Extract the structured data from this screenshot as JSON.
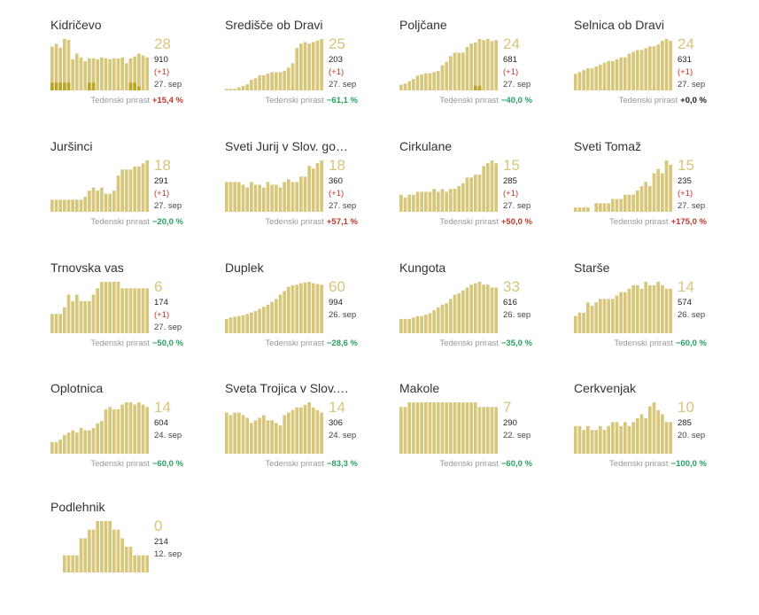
{
  "colors": {
    "bar": "#d8c77a",
    "bar_dark": "#bba323",
    "big_number": "#d8c47a",
    "up": "#c0392b",
    "down": "#27a060"
  },
  "growth_label": "Tedenski prirast",
  "chart_data": [
    {
      "type": "bar",
      "title": "Kidričevo",
      "active": "28",
      "total": "910",
      "delta": "(+1)",
      "date": "27. sep",
      "growth": "+15,4 %",
      "values": [
        45,
        48,
        44,
        53,
        52,
        32,
        38,
        34,
        30,
        33,
        33,
        32,
        34,
        33,
        32,
        33,
        33,
        34,
        28,
        33,
        35,
        38,
        36,
        34
      ],
      "dark": [
        8,
        8,
        8,
        8,
        8,
        0,
        0,
        0,
        0,
        8,
        8,
        0,
        0,
        0,
        0,
        0,
        0,
        0,
        0,
        8,
        8,
        4,
        0,
        0
      ]
    },
    {
      "type": "bar",
      "title": "Središče ob Dravi",
      "active": "25",
      "total": "203",
      "delta": "(+1)",
      "date": "27. sep",
      "growth": "−61,1 %",
      "values": [
        1,
        1,
        1,
        2,
        3,
        4,
        7,
        8,
        10,
        10,
        11,
        12,
        12,
        12,
        13,
        15,
        18,
        28,
        31,
        32,
        31,
        32,
        33,
        34
      ],
      "dark": [
        0,
        0,
        0,
        0,
        0,
        0,
        0,
        0,
        0,
        0,
        0,
        0,
        0,
        0,
        0,
        0,
        0,
        0,
        0,
        0,
        0,
        0,
        0,
        0
      ]
    },
    {
      "type": "bar",
      "title": "Poljčane",
      "active": "24",
      "total": "681",
      "delta": "(+1)",
      "date": "27. sep",
      "growth": "−40,0 %",
      "values": [
        5,
        6,
        8,
        10,
        13,
        14,
        15,
        15,
        16,
        17,
        22,
        25,
        30,
        33,
        33,
        33,
        38,
        41,
        42,
        45,
        44,
        45,
        43,
        44
      ],
      "dark": [
        0,
        0,
        0,
        0,
        0,
        0,
        0,
        0,
        0,
        0,
        0,
        0,
        0,
        0,
        0,
        0,
        0,
        0,
        4,
        4,
        0,
        0,
        0,
        0
      ]
    },
    {
      "type": "bar",
      "title": "Selnica ob Dravi",
      "active": "24",
      "total": "631",
      "delta": "(+1)",
      "date": "27. sep",
      "growth": "+0,0 %",
      "values": [
        9,
        10,
        11,
        12,
        12,
        13,
        14,
        15,
        16,
        16,
        17,
        18,
        18,
        20,
        21,
        22,
        22,
        23,
        24,
        24,
        25,
        27,
        28,
        27
      ],
      "dark": [
        0,
        0,
        0,
        0,
        0,
        0,
        0,
        0,
        0,
        0,
        0,
        0,
        0,
        0,
        0,
        0,
        0,
        0,
        0,
        0,
        0,
        0,
        0,
        0
      ]
    },
    {
      "type": "bar",
      "title": "Juršinci",
      "active": "18",
      "total": "291",
      "delta": "(+1)",
      "date": "27. sep",
      "growth": "−20,0 %",
      "values": [
        4,
        4,
        4,
        4,
        4,
        4,
        4,
        4,
        5,
        7,
        8,
        7,
        8,
        6,
        6,
        7,
        12,
        14,
        14,
        14,
        15,
        15,
        16,
        17
      ],
      "dark": [
        0,
        0,
        0,
        0,
        0,
        0,
        0,
        0,
        0,
        0,
        0,
        0,
        0,
        0,
        0,
        0,
        0,
        0,
        0,
        0,
        0,
        0,
        0,
        0
      ]
    },
    {
      "type": "bar",
      "title": "Sveti Jurij v Slov. go…",
      "active": "18",
      "total": "360",
      "delta": "(+1)",
      "date": "27. sep",
      "growth": "+57,1 %",
      "values": [
        11,
        11,
        11,
        11,
        10,
        9,
        11,
        10,
        10,
        9,
        11,
        10,
        10,
        9,
        11,
        12,
        11,
        11,
        13,
        13,
        17,
        16,
        18,
        19
      ],
      "dark": [
        0,
        0,
        0,
        0,
        0,
        0,
        0,
        0,
        0,
        0,
        0,
        0,
        0,
        0,
        0,
        0,
        0,
        0,
        0,
        0,
        0,
        0,
        0,
        0
      ]
    },
    {
      "type": "bar",
      "title": "Cirkulane",
      "active": "15",
      "total": "285",
      "delta": "(+1)",
      "date": "27. sep",
      "growth": "+50,0 %",
      "values": [
        6,
        5,
        6,
        6,
        7,
        7,
        7,
        7,
        8,
        7,
        8,
        7,
        8,
        8,
        9,
        10,
        12,
        12,
        13,
        13,
        16,
        17,
        18,
        17
      ],
      "dark": [
        0,
        0,
        0,
        0,
        0,
        0,
        0,
        0,
        0,
        0,
        0,
        0,
        0,
        0,
        0,
        0,
        0,
        0,
        0,
        0,
        0,
        0,
        0,
        0
      ]
    },
    {
      "type": "bar",
      "title": "Sveti Tomaž",
      "active": "15",
      "total": "235",
      "delta": "(+1)",
      "date": "27. sep",
      "growth": "+175,0 %",
      "values": [
        1,
        1,
        1,
        1,
        0,
        2,
        2,
        2,
        2,
        3,
        3,
        3,
        4,
        4,
        4,
        5,
        6,
        7,
        6,
        9,
        10,
        9,
        12,
        11
      ],
      "dark": [
        0,
        0,
        0,
        0,
        0,
        0,
        0,
        0,
        0,
        0,
        0,
        0,
        0,
        0,
        0,
        0,
        0,
        0,
        0,
        0,
        0,
        0,
        0,
        0
      ]
    },
    {
      "type": "bar",
      "title": "Trnovska vas",
      "active": "6",
      "total": "174",
      "delta": "(+1)",
      "date": "27. sep",
      "growth": "−50,0 %",
      "values": [
        3,
        3,
        3,
        4,
        6,
        5,
        6,
        5,
        5,
        5,
        6,
        7,
        8,
        8,
        8,
        8,
        8,
        7,
        7,
        7,
        7,
        7,
        7,
        7
      ],
      "dark": [
        0,
        0,
        0,
        0,
        0,
        0,
        0,
        0,
        0,
        0,
        0,
        0,
        0,
        0,
        0,
        0,
        0,
        0,
        0,
        0,
        0,
        0,
        0,
        0
      ]
    },
    {
      "type": "bar",
      "title": "Duplek",
      "active": "60",
      "total": "994",
      "delta": "",
      "date": "26. sep",
      "growth": "−28,6 %",
      "values": [
        20,
        22,
        23,
        24,
        25,
        27,
        29,
        31,
        34,
        37,
        40,
        44,
        48,
        54,
        59,
        65,
        67,
        68,
        70,
        71,
        72,
        70,
        69,
        68
      ],
      "dark": [
        0,
        0,
        0,
        0,
        0,
        0,
        0,
        0,
        0,
        0,
        0,
        0,
        0,
        0,
        0,
        0,
        0,
        0,
        0,
        0,
        0,
        0,
        0,
        0
      ]
    },
    {
      "type": "bar",
      "title": "Kungota",
      "active": "33",
      "total": "616",
      "delta": "",
      "date": "26. sep",
      "growth": "−35,0 %",
      "values": [
        10,
        10,
        10,
        11,
        12,
        12,
        13,
        14,
        16,
        18,
        20,
        21,
        24,
        27,
        28,
        30,
        32,
        34,
        35,
        36,
        34,
        34,
        32,
        32
      ],
      "dark": [
        0,
        0,
        0,
        0,
        0,
        0,
        0,
        0,
        0,
        0,
        0,
        0,
        0,
        0,
        0,
        0,
        0,
        0,
        0,
        0,
        0,
        0,
        0,
        0
      ]
    },
    {
      "type": "bar",
      "title": "Starše",
      "active": "14",
      "total": "574",
      "delta": "",
      "date": "26. sep",
      "growth": "−60,0 %",
      "values": [
        5,
        6,
        6,
        9,
        8,
        9,
        10,
        10,
        10,
        10,
        11,
        12,
        12,
        13,
        14,
        14,
        13,
        15,
        14,
        14,
        15,
        14,
        13,
        13
      ],
      "dark": [
        0,
        0,
        0,
        0,
        0,
        0,
        0,
        0,
        0,
        0,
        0,
        0,
        0,
        0,
        0,
        0,
        0,
        0,
        0,
        0,
        0,
        0,
        0,
        0
      ]
    },
    {
      "type": "bar",
      "title": "Oplotnica",
      "active": "14",
      "total": "604",
      "delta": "",
      "date": "24. sep",
      "growth": "−60,0 %",
      "values": [
        5,
        5,
        6,
        8,
        9,
        10,
        9,
        11,
        10,
        10,
        11,
        13,
        14,
        19,
        20,
        19,
        19,
        21,
        22,
        22,
        21,
        22,
        21,
        20
      ],
      "dark": [
        0,
        0,
        0,
        0,
        0,
        0,
        0,
        0,
        0,
        0,
        0,
        0,
        0,
        0,
        0,
        0,
        0,
        0,
        0,
        0,
        0,
        0,
        0,
        0
      ]
    },
    {
      "type": "bar",
      "title": "Sveta Trojica v Slov.…",
      "active": "14",
      "total": "306",
      "delta": "",
      "date": "24. sep",
      "growth": "−83,3 %",
      "values": [
        16,
        15,
        16,
        16,
        15,
        14,
        12,
        13,
        14,
        15,
        13,
        13,
        12,
        11,
        15,
        16,
        17,
        18,
        18,
        19,
        20,
        18,
        17,
        16
      ],
      "dark": [
        0,
        0,
        0,
        0,
        0,
        0,
        0,
        0,
        0,
        0,
        0,
        0,
        0,
        0,
        0,
        0,
        0,
        0,
        0,
        0,
        0,
        0,
        0,
        0
      ]
    },
    {
      "type": "bar",
      "title": "Makole",
      "active": "7",
      "total": "290",
      "delta": "",
      "date": "22. sep",
      "growth": "−60,0 %",
      "values": [
        10,
        10,
        11,
        11,
        11,
        11,
        11,
        11,
        11,
        11,
        11,
        11,
        11,
        11,
        11,
        11,
        11,
        11,
        11,
        10,
        10,
        10,
        10,
        10
      ],
      "dark": [
        0,
        0,
        0,
        0,
        0,
        0,
        0,
        0,
        0,
        0,
        0,
        0,
        0,
        0,
        0,
        0,
        0,
        0,
        0,
        0,
        0,
        0,
        0,
        0
      ]
    },
    {
      "type": "bar",
      "title": "Cerkvenjak",
      "active": "10",
      "total": "285",
      "delta": "",
      "date": "20. sep",
      "growth": "−100,0 %",
      "values": [
        7,
        7,
        6,
        7,
        6,
        6,
        7,
        6,
        7,
        8,
        8,
        7,
        8,
        7,
        8,
        9,
        10,
        9,
        12,
        13,
        11,
        10,
        8,
        8
      ],
      "dark": [
        0,
        0,
        0,
        0,
        0,
        0,
        0,
        0,
        0,
        0,
        0,
        0,
        0,
        0,
        0,
        0,
        0,
        0,
        0,
        0,
        0,
        0,
        0,
        0
      ]
    },
    {
      "type": "bar",
      "title": "Podlehnik",
      "active": "0",
      "total": "214",
      "delta": "",
      "date": "12. sep",
      "growth": "",
      "values": [
        0,
        0,
        0,
        2,
        2,
        2,
        2,
        4,
        4,
        5,
        5,
        6,
        6,
        6,
        6,
        5,
        5,
        4,
        3,
        3,
        2,
        2,
        2,
        2
      ],
      "dark": [
        0,
        0,
        0,
        0,
        0,
        0,
        0,
        0,
        0,
        0,
        0,
        0,
        0,
        0,
        0,
        0,
        0,
        0,
        0,
        0,
        0,
        0,
        0,
        0
      ]
    }
  ]
}
